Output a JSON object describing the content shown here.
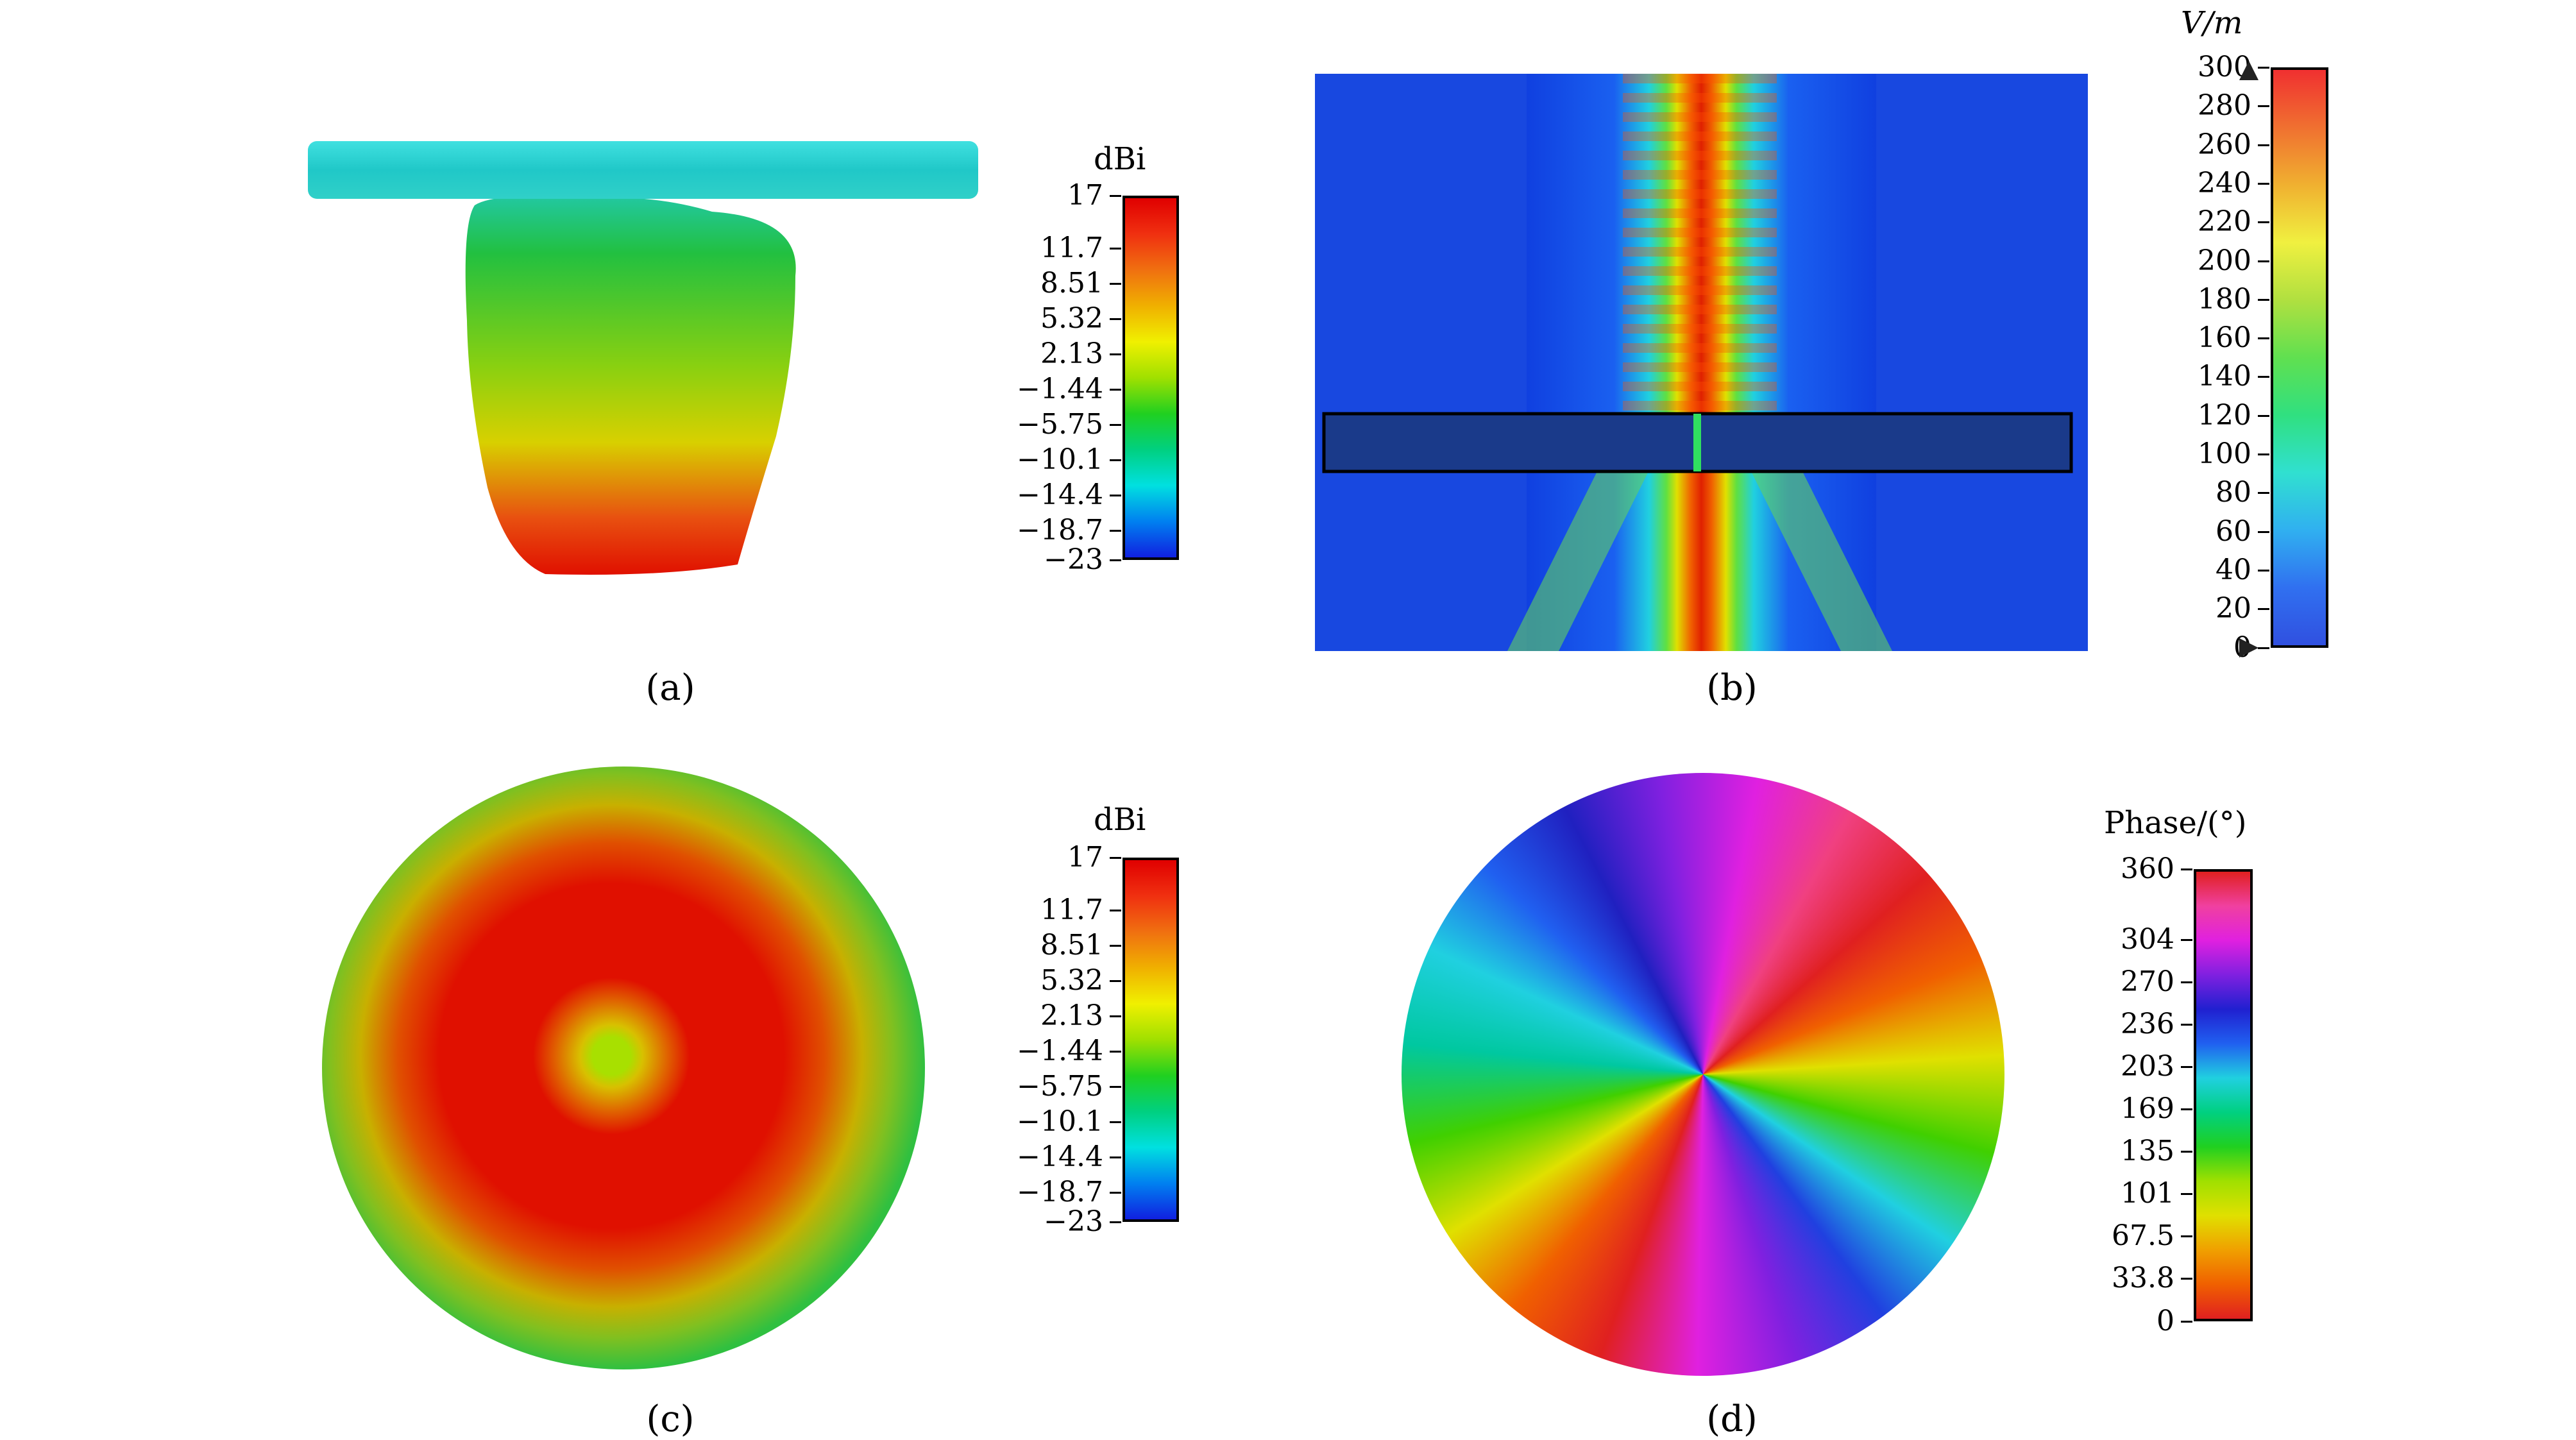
{
  "panels": {
    "a": {
      "caption": "(a)",
      "colorbar": {
        "title": "dBi",
        "ticks": [
          "17",
          "11.7",
          "8.51",
          "5.32",
          "2.13",
          "−1.44",
          "−5.75",
          "−10.1",
          "−14.4",
          "−18.7",
          "−23"
        ]
      }
    },
    "b": {
      "caption": "(b)",
      "colorbar": {
        "title": "V/m",
        "ticks": [
          "300",
          "280",
          "260",
          "240",
          "220",
          "200",
          "180",
          "160",
          "140",
          "120",
          "100",
          "80",
          "60",
          "40",
          "20",
          "0"
        ]
      }
    },
    "c": {
      "caption": "(c)",
      "colorbar": {
        "title": "dBi",
        "ticks": [
          "17",
          "11.7",
          "8.51",
          "5.32",
          "2.13",
          "−1.44",
          "−5.75",
          "−10.1",
          "−14.4",
          "−18.7",
          "−23"
        ]
      }
    },
    "d": {
      "caption": "(d)",
      "colorbar": {
        "title": "Phase/(°)",
        "ticks": [
          "360",
          "304",
          "270",
          "236",
          "203",
          "169",
          "135",
          "101",
          "67.5",
          "33.8",
          "0"
        ]
      }
    }
  }
}
